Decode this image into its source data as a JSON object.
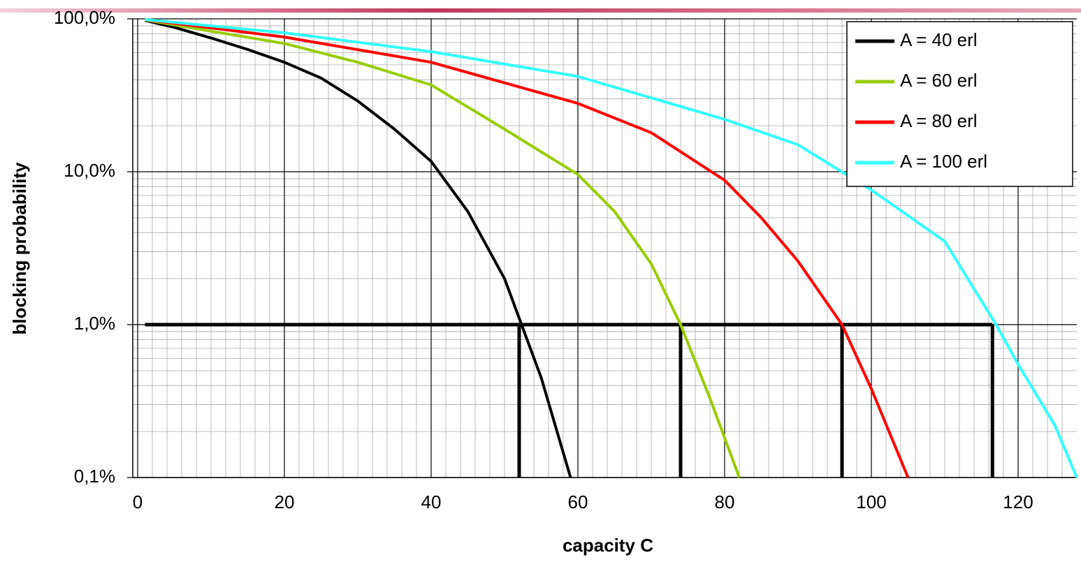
{
  "chart_data": {
    "type": "line",
    "xlabel": "capacity C",
    "ylabel": "blocking probability",
    "xlim": [
      0,
      128
    ],
    "xticks": [
      0,
      20,
      40,
      60,
      80,
      100,
      120
    ],
    "ylim": [
      0.1,
      100
    ],
    "yscale": "log",
    "yticks": [
      {
        "value": 0.1,
        "label": "0,1%"
      },
      {
        "value": 1,
        "label": "1,0%"
      },
      {
        "value": 10,
        "label": "10,0%"
      },
      {
        "value": 100,
        "label": "100,0%"
      }
    ],
    "grid": true,
    "minor_grid": true,
    "legend": "upper right",
    "series": [
      {
        "name": "A = 40 erl",
        "color": "#000000",
        "x": [
          1,
          5,
          10,
          15,
          20,
          25,
          30,
          35,
          40,
          45,
          50,
          55,
          59
        ],
        "values": [
          97.6,
          88,
          75,
          63,
          52,
          41,
          29,
          19,
          11.7,
          5.5,
          2.0,
          0.45,
          0.1
        ]
      },
      {
        "name": "A = 60 erl",
        "color": "#99cc00",
        "x": [
          1,
          10,
          20,
          30,
          40,
          50,
          60,
          65,
          70,
          74,
          78,
          82
        ],
        "values": [
          98.4,
          83,
          69,
          52,
          37,
          19,
          9.6,
          5.5,
          2.5,
          1.0,
          0.33,
          0.1
        ]
      },
      {
        "name": "A = 80 erl",
        "color": "#ff0000",
        "x": [
          1,
          20,
          40,
          60,
          70,
          80,
          85,
          90,
          96,
          100,
          105
        ],
        "values": [
          98.8,
          76,
          52,
          28,
          18,
          8.8,
          5,
          2.6,
          1.0,
          0.38,
          0.1
        ]
      },
      {
        "name": "A = 100 erl",
        "color": "#33ffff",
        "x": [
          1,
          20,
          40,
          60,
          80,
          90,
          100,
          110,
          117,
          120,
          125,
          128
        ],
        "values": [
          99,
          81,
          61,
          42,
          22,
          15,
          7.6,
          3.5,
          1.0,
          0.55,
          0.22,
          0.1
        ]
      }
    ],
    "reference_lines": {
      "y": 1,
      "x": [
        52,
        74,
        96,
        116.5
      ],
      "color": "#000000"
    }
  }
}
